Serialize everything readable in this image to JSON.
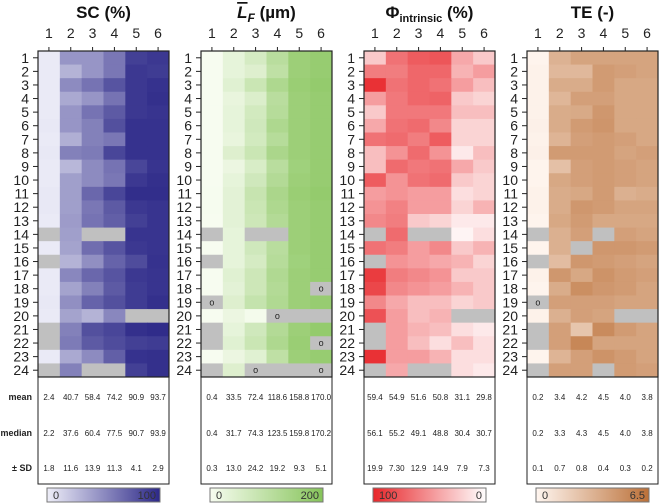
{
  "chart_data": {
    "type": "heatmap",
    "columns": [
      "1",
      "2",
      "3",
      "4",
      "5",
      "6"
    ],
    "rows": [
      "1",
      "2",
      "3",
      "4",
      "5",
      "6",
      "7",
      "8",
      "9",
      "10",
      "11",
      "12",
      "13",
      "14",
      "15",
      "16",
      "17",
      "18",
      "19",
      "20",
      "21",
      "22",
      "23",
      "24"
    ],
    "missing_color": "#c0c0c0",
    "marker_text": "o",
    "stat_labels": [
      "mean",
      "median",
      "± SD"
    ],
    "panels": [
      {
        "title": "SC (%)",
        "title_main": "SC",
        "title_sub": "",
        "title_unit": " (%)",
        "range": [
          0,
          100
        ],
        "color_low": "#eeeef8",
        "color_high": "#2c2888",
        "legend_left": "0",
        "legend_right": "100",
        "values": [
          [
            2,
            45,
            45,
            60,
            88,
            92
          ],
          [
            2,
            30,
            45,
            60,
            92,
            90
          ],
          [
            2,
            50,
            62,
            78,
            92,
            95
          ],
          [
            2,
            35,
            45,
            62,
            92,
            96
          ],
          [
            2,
            45,
            62,
            75,
            92,
            94
          ],
          [
            3,
            45,
            55,
            80,
            95,
            95
          ],
          [
            2,
            32,
            55,
            60,
            95,
            95
          ],
          [
            3,
            55,
            58,
            85,
            95,
            95
          ],
          [
            2,
            28,
            50,
            62,
            85,
            94
          ],
          [
            2,
            40,
            50,
            60,
            92,
            96
          ],
          [
            3,
            40,
            68,
            85,
            97,
            97
          ],
          [
            3,
            40,
            60,
            75,
            92,
            94
          ],
          [
            2,
            42,
            62,
            72,
            88,
            94
          ],
          [
            null,
            40,
            null,
            null,
            94,
            94
          ],
          [
            2,
            38,
            65,
            78,
            92,
            94
          ],
          [
            null,
            30,
            48,
            70,
            82,
            95
          ],
          [
            2,
            52,
            68,
            78,
            92,
            94
          ],
          [
            2,
            38,
            55,
            75,
            90,
            94
          ],
          [
            3,
            48,
            70,
            80,
            90,
            96
          ],
          [
            2,
            38,
            30,
            52,
            null,
            null
          ],
          [
            null,
            55,
            80,
            85,
            96,
            98
          ],
          [
            null,
            58,
            75,
            82,
            88,
            90
          ],
          [
            2,
            35,
            50,
            72,
            95,
            96
          ],
          [
            null,
            55,
            null,
            null,
            88,
            96
          ]
        ],
        "markers": [],
        "mean": [
          "2.4",
          "40.7",
          "58.4",
          "74.2",
          "90.9",
          "93.7"
        ],
        "median": [
          "2.2",
          "37.6",
          "60.4",
          "77.5",
          "90.7",
          "93.9"
        ],
        "sd": [
          "1.8",
          "11.6",
          "13.9",
          "11.3",
          "4.1",
          "2.9"
        ]
      },
      {
        "title": "L̄F (µm)",
        "title_main": "L",
        "title_sub": "F",
        "title_unit": " (µm)",
        "range": [
          0,
          200
        ],
        "color_low": "#f7fcf0",
        "color_high": "#86c45a",
        "legend_left": "0",
        "legend_right": "200",
        "values": [
          [
            0,
            30,
            60,
            110,
            160,
            170
          ],
          [
            0,
            30,
            45,
            100,
            160,
            170
          ],
          [
            0,
            40,
            80,
            130,
            165,
            175
          ],
          [
            0,
            25,
            50,
            110,
            160,
            170
          ],
          [
            0,
            30,
            65,
            115,
            160,
            170
          ],
          [
            0,
            30,
            70,
            130,
            160,
            170
          ],
          [
            0,
            25,
            65,
            115,
            160,
            170
          ],
          [
            0,
            45,
            80,
            135,
            160,
            170
          ],
          [
            0,
            20,
            55,
            110,
            155,
            170
          ],
          [
            0,
            30,
            70,
            120,
            160,
            170
          ],
          [
            1,
            35,
            85,
            135,
            165,
            175
          ],
          [
            1,
            35,
            80,
            130,
            160,
            170
          ],
          [
            0,
            35,
            75,
            120,
            160,
            170
          ],
          [
            null,
            30,
            null,
            null,
            160,
            170
          ],
          [
            0,
            30,
            70,
            110,
            160,
            170
          ],
          [
            null,
            30,
            60,
            115,
            155,
            170
          ],
          [
            0,
            40,
            75,
            125,
            160,
            170
          ],
          [
            0,
            35,
            75,
            120,
            160,
            null
          ],
          [
            null,
            45,
            90,
            125,
            160,
            170
          ],
          [
            0,
            20,
            5,
            null,
            null,
            null
          ],
          [
            null,
            30,
            70,
            120,
            160,
            175
          ],
          [
            null,
            40,
            80,
            130,
            165,
            null
          ],
          [
            0,
            20,
            40,
            100,
            160,
            170
          ],
          [
            null,
            45,
            null,
            null,
            null,
            null
          ]
        ],
        "markers": [
          [
            18,
            6
          ],
          [
            19,
            1
          ],
          [
            20,
            4
          ],
          [
            22,
            6
          ],
          [
            24,
            3
          ],
          [
            24,
            6
          ]
        ],
        "mean": [
          "0.4",
          "33.5",
          "72.4",
          "118.6",
          "158.8",
          "170.0"
        ],
        "median": [
          "0.4",
          "31.7",
          "74.3",
          "123.5",
          "159.8",
          "170.2"
        ],
        "sd": [
          "0.3",
          "13.0",
          "24.2",
          "19.2",
          "9.3",
          "5.1"
        ]
      },
      {
        "title": "Φintrinsic (%)",
        "title_main": "Φ",
        "title_sub": "intrinsic",
        "title_unit": " (%)",
        "range": [
          100,
          0
        ],
        "color_low": "#ffffff",
        "color_high": "#e8262a",
        "legend_left": "100",
        "legend_right": "0",
        "values": [
          [
            25,
            65,
            75,
            78,
            40,
            25
          ],
          [
            60,
            60,
            70,
            70,
            35,
            45
          ],
          [
            95,
            65,
            70,
            65,
            45,
            30
          ],
          [
            45,
            62,
            70,
            72,
            25,
            20
          ],
          [
            25,
            62,
            62,
            62,
            30,
            30
          ],
          [
            40,
            65,
            68,
            55,
            20,
            20
          ],
          [
            65,
            68,
            60,
            75,
            20,
            20
          ],
          [
            30,
            50,
            68,
            50,
            10,
            30
          ],
          [
            30,
            68,
            62,
            65,
            40,
            25
          ],
          [
            75,
            50,
            65,
            68,
            25,
            20
          ],
          [
            45,
            50,
            45,
            45,
            15,
            20
          ],
          [
            50,
            58,
            45,
            45,
            20,
            35
          ],
          [
            55,
            60,
            25,
            20,
            10,
            10
          ],
          [
            null,
            68,
            null,
            null,
            5,
            15
          ],
          [
            65,
            60,
            45,
            55,
            25,
            35
          ],
          [
            null,
            50,
            45,
            40,
            35,
            20
          ],
          [
            90,
            60,
            55,
            50,
            25,
            25
          ],
          [
            85,
            55,
            50,
            45,
            35,
            25
          ],
          [
            55,
            40,
            30,
            30,
            20,
            25
          ],
          [
            80,
            45,
            30,
            35,
            null,
            null
          ],
          [
            null,
            45,
            35,
            30,
            15,
            10
          ],
          [
            null,
            45,
            30,
            15,
            30,
            15
          ],
          [
            95,
            45,
            45,
            35,
            15,
            15
          ],
          [
            null,
            40,
            null,
            null,
            15,
            10
          ]
        ],
        "markers": [],
        "mean": [
          "59.4",
          "54.9",
          "51.6",
          "50.8",
          "31.1",
          "29.8"
        ],
        "median": [
          "56.1",
          "55.2",
          "49.1",
          "48.8",
          "30.4",
          "30.7"
        ],
        "sd": [
          "19.9",
          "7.30",
          "12.9",
          "14.9",
          "7.9",
          "7.3"
        ]
      },
      {
        "title": "TE (-)",
        "title_main": "TE",
        "title_sub": "",
        "title_unit": " (-)",
        "range": [
          0,
          6.5
        ],
        "color_low": "#fff6f0",
        "color_high": "#bb7038",
        "legend_left": "0",
        "legend_right": "6.5",
        "values": [
          [
            0.1,
            3.3,
            4.0,
            4.0,
            4.0,
            4.0
          ],
          [
            0.2,
            3.0,
            3.0,
            4.4,
            4.2,
            4.0
          ],
          [
            0.2,
            3.6,
            3.6,
            4.4,
            3.8,
            3.8
          ],
          [
            0.2,
            3.1,
            4.2,
            4.2,
            3.8,
            3.8
          ],
          [
            0.2,
            3.6,
            3.7,
            4.6,
            3.8,
            3.8
          ],
          [
            0.3,
            3.6,
            4.4,
            4.7,
            3.8,
            3.8
          ],
          [
            0.2,
            3.2,
            4.2,
            4.4,
            4.2,
            3.8
          ],
          [
            0.3,
            4.4,
            4.4,
            4.4,
            4.0,
            4.2
          ],
          [
            0.1,
            2.6,
            4.2,
            4.4,
            4.2,
            4.0
          ],
          [
            0.1,
            3.8,
            4.2,
            4.4,
            4.2,
            4.0
          ],
          [
            0.2,
            3.6,
            3.8,
            4.4,
            3.4,
            3.6
          ],
          [
            0.2,
            3.6,
            4.6,
            4.4,
            4.0,
            4.0
          ],
          [
            0.1,
            3.8,
            4.4,
            3.8,
            3.8,
            3.8
          ],
          [
            null,
            3.4,
            4.2,
            null,
            4.2,
            4.0
          ],
          [
            0.1,
            3.4,
            null,
            4.6,
            4.6,
            4.4
          ],
          [
            null,
            2.8,
            4.6,
            4.4,
            4.2,
            4.0
          ],
          [
            0.2,
            4.6,
            3.8,
            4.8,
            4.4,
            4.2
          ],
          [
            0.1,
            3.6,
            5.0,
            4.6,
            4.4,
            4.0
          ],
          [
            null,
            4.2,
            4.2,
            4.2,
            4.0,
            4.0
          ],
          [
            0.2,
            3.4,
            4.2,
            4.0,
            null,
            null
          ],
          [
            null,
            4.2,
            2.4,
            5.2,
            4.4,
            4.0
          ],
          [
            null,
            4.2,
            5.4,
            4.0,
            4.0,
            4.0
          ],
          [
            0.1,
            3.2,
            4.2,
            4.8,
            4.4,
            4.0
          ],
          [
            null,
            4.2,
            4.2,
            null,
            4.4,
            4.2
          ]
        ],
        "markers": [
          [
            19,
            1
          ]
        ],
        "mean": [
          "0.2",
          "3.4",
          "4.2",
          "4.5",
          "4.0",
          "3.8"
        ],
        "median": [
          "0.2",
          "3.3",
          "4.3",
          "4.5",
          "4.0",
          "3.8"
        ],
        "sd": [
          "0.1",
          "0.7",
          "0.8",
          "0.4",
          "0.3",
          "0.2"
        ]
      }
    ]
  }
}
